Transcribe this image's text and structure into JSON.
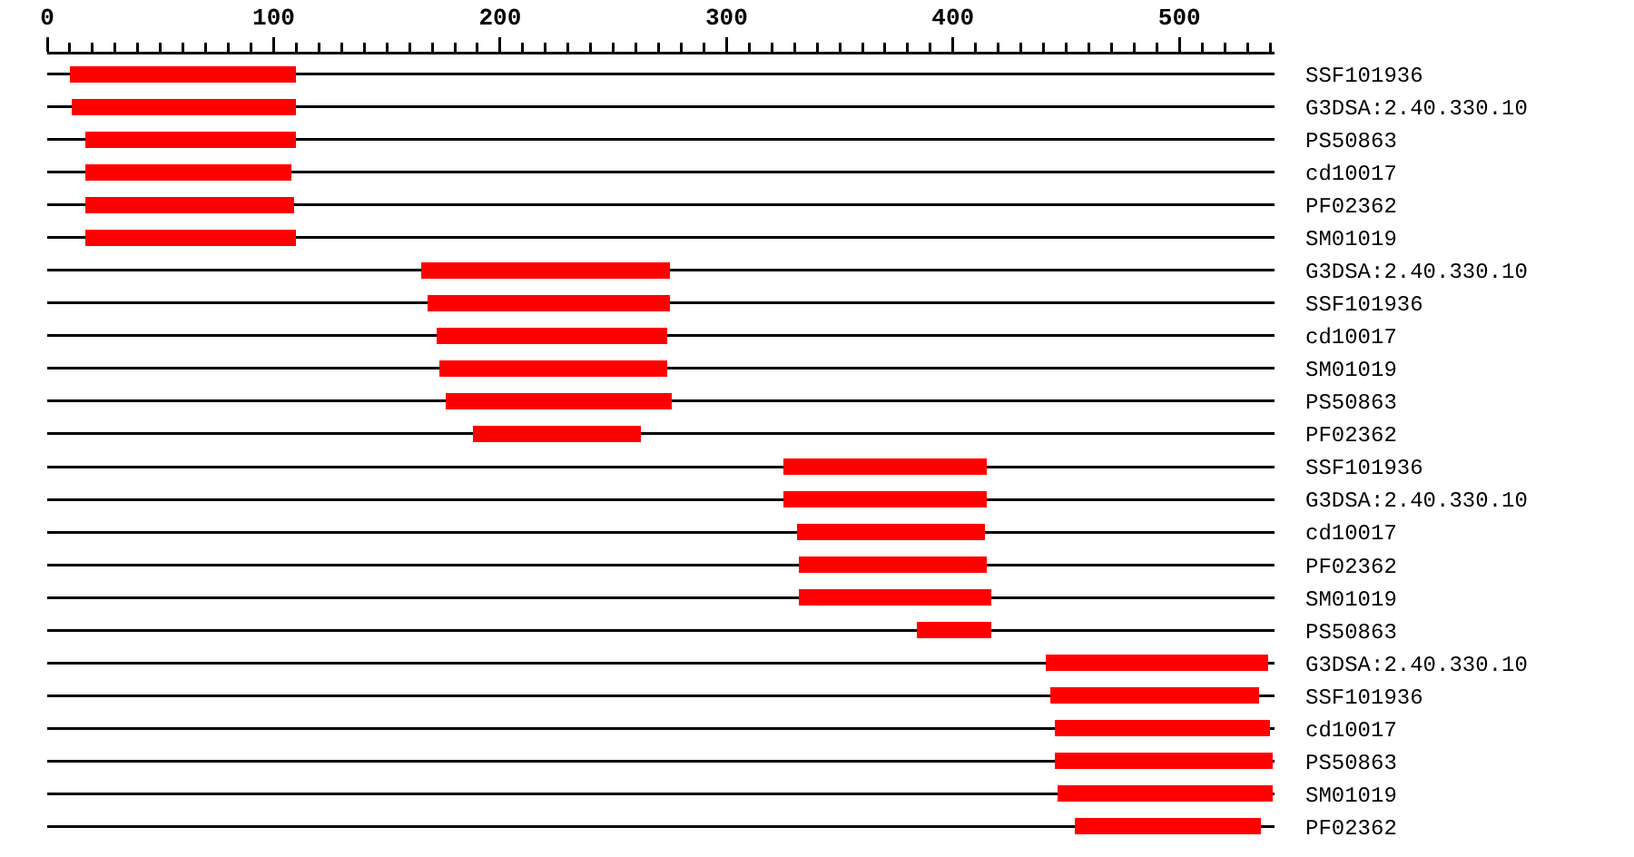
{
  "chart_data": {
    "type": "bar",
    "orientation": "horizontal",
    "categories": [
      "SSF101936",
      "G3DSA:2.40.330.10",
      "PS50863",
      "cd10017",
      "PF02362",
      "SM01019",
      "G3DSA:2.40.330.10",
      "SSF101936",
      "cd10017",
      "SM01019",
      "PS50863",
      "PF02362",
      "SSF101936",
      "G3DSA:2.40.330.10",
      "cd10017",
      "PF02362",
      "SM01019",
      "PS50863",
      "G3DSA:2.40.330.10",
      "SSF101936",
      "cd10017",
      "PS50863",
      "SM01019",
      "PF02362"
    ],
    "base": [
      10,
      11,
      17,
      17,
      17,
      17,
      165,
      168,
      172,
      173,
      176,
      188,
      325,
      325,
      331,
      332,
      332,
      384,
      441,
      443,
      445,
      445,
      446,
      454
    ],
    "values": [
      100,
      99,
      93,
      91,
      92,
      93,
      110,
      107,
      102,
      101,
      100,
      74,
      90,
      90,
      83,
      83,
      85,
      33,
      98,
      92,
      95,
      96,
      95,
      82
    ],
    "color": "#ff0000",
    "xlim": [
      0,
      542
    ],
    "xticks": [
      0,
      {
        "value": 10,
        "label": null
      },
      {
        "value": 20,
        "label": null
      },
      {
        "value": 30,
        "label": null
      },
      {
        "value": 40,
        "label": null
      },
      {
        "value": 50,
        "label": null
      },
      {
        "value": 60,
        "label": null
      },
      {
        "value": 70,
        "label": null
      },
      {
        "value": 80,
        "label": null
      },
      {
        "value": 90,
        "label": null
      },
      100,
      {
        "value": 110,
        "label": null
      },
      {
        "value": 120,
        "label": null
      },
      {
        "value": 130,
        "label": null
      },
      {
        "value": 140,
        "label": null
      },
      {
        "value": 150,
        "label": null
      },
      {
        "value": 160,
        "label": null
      },
      {
        "value": 170,
        "label": null
      },
      {
        "value": 180,
        "label": null
      },
      {
        "value": 190,
        "label": null
      },
      200,
      {
        "value": 210,
        "label": null
      },
      {
        "value": 220,
        "label": null
      },
      {
        "value": 230,
        "label": null
      },
      {
        "value": 240,
        "label": null
      },
      {
        "value": 250,
        "label": null
      },
      {
        "value": 260,
        "label": null
      },
      {
        "value": 270,
        "label": null
      },
      {
        "value": 280,
        "label": null
      },
      {
        "value": 290,
        "label": null
      },
      300,
      {
        "value": 310,
        "label": null
      },
      {
        "value": 320,
        "label": null
      },
      {
        "value": 330,
        "label": null
      },
      {
        "value": 340,
        "label": null
      },
      {
        "value": 350,
        "label": null
      },
      {
        "value": 360,
        "label": null
      },
      {
        "value": 370,
        "label": null
      },
      {
        "value": 380,
        "label": null
      },
      {
        "value": 390,
        "label": null
      },
      400,
      {
        "value": 410,
        "label": null
      },
      {
        "value": 420,
        "label": null
      },
      {
        "value": 430,
        "label": null
      },
      {
        "value": 440,
        "label": null
      },
      {
        "value": 450,
        "label": null
      },
      {
        "value": 460,
        "label": null
      },
      {
        "value": 470,
        "label": null
      },
      {
        "value": 480,
        "label": null
      },
      {
        "value": 490,
        "label": null
      },
      500,
      {
        "value": 510,
        "label": null
      },
      {
        "value": 520,
        "label": null
      },
      {
        "value": 530,
        "label": null
      },
      {
        "value": 540,
        "label": null
      }
    ],
    "grid": "y"
  }
}
